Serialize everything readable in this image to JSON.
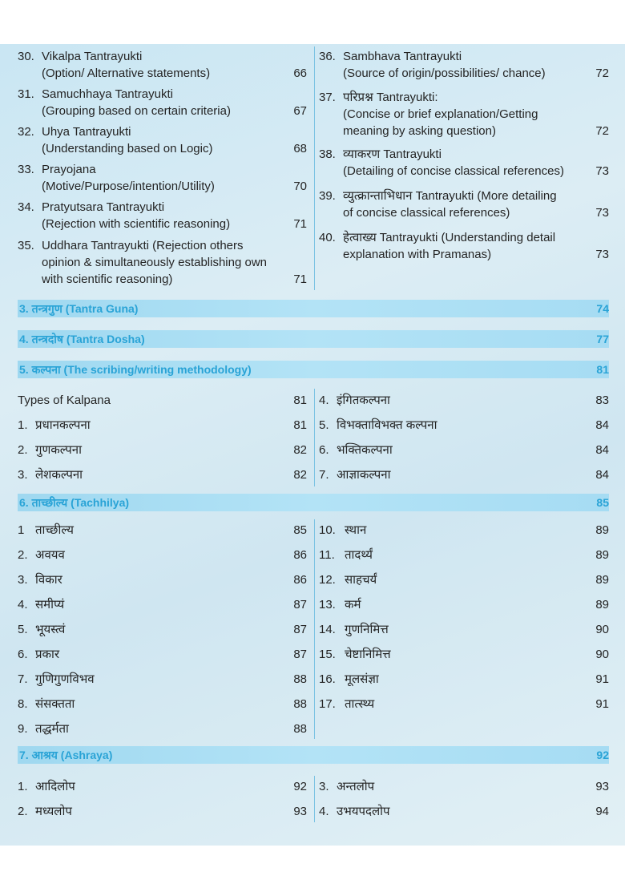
{
  "tantrayukti_left": [
    {
      "num": "30.",
      "lines": [
        "Vikalpa Tantrayukti",
        "(Option/ Alternative statements)"
      ],
      "page": "66"
    },
    {
      "num": "31.",
      "lines": [
        "Samuchhaya Tantrayukti",
        "(Grouping based on certain criteria)"
      ],
      "page": "67"
    },
    {
      "num": "32.",
      "lines": [
        "Uhya Tantrayukti",
        "(Understanding based on Logic)"
      ],
      "page": "68"
    },
    {
      "num": "33.",
      "lines": [
        "Prayojana",
        "(Motive/Purpose/intention/Utility)"
      ],
      "page": "70"
    },
    {
      "num": "34.",
      "lines": [
        "Pratyutsara Tantrayukti",
        "(Rejection with scientific reasoning)"
      ],
      "page": "71"
    },
    {
      "num": "35.",
      "lines": [
        "Uddhara Tantrayukti (Rejection others",
        "opinion & simultaneously establishing own",
        "with scientific reasoning)"
      ],
      "page": "71"
    }
  ],
  "tantrayukti_right": [
    {
      "num": "36.",
      "lines": [
        "Sambhava Tantrayukti",
        "(Source of origin/possibilities/ chance)"
      ],
      "page": "72"
    },
    {
      "num": "37.",
      "lines": [
        "परिप्रश्न Tantrayukti:",
        "(Concise or brief explanation/Getting",
        "meaning by asking question)"
      ],
      "page": "72"
    },
    {
      "num": "38.",
      "lines": [
        "व्याकरण Tantrayukti",
        "(Detailing of concise classical references)"
      ],
      "page": "73"
    },
    {
      "num": "39.",
      "lines": [
        "व्युत्क्रान्ताभिधान Tantrayukti (More detailing",
        "of concise classical references)"
      ],
      "page": "73"
    },
    {
      "num": "40.",
      "lines": [
        "हेत्वाख्य Tantrayukti (Understanding detail",
        "explanation with Pramanas)"
      ],
      "page": "73"
    }
  ],
  "sections": [
    {
      "title": "3. तन्त्रगुण (Tantra Guna)",
      "page": "74"
    },
    {
      "title": "4. तन्त्रदोष (Tantra Dosha)",
      "page": "77"
    },
    {
      "title": "5. कल्पना (The scribing/writing methodology)",
      "page": "81"
    },
    {
      "title": "6. ताच्छील्य (Tachhilya)",
      "page": "85"
    },
    {
      "title": "7. आश्रय (Ashraya)",
      "page": "92"
    }
  ],
  "kalpana_left": [
    {
      "num": "",
      "text": "Types of Kalpana",
      "page": "81"
    },
    {
      "num": "1.",
      "text": "प्रधानकल्पना",
      "page": "81"
    },
    {
      "num": "2.",
      "text": "गुणकल्पना",
      "page": "82"
    },
    {
      "num": "3.",
      "text": "लेशकल्पना",
      "page": "82"
    }
  ],
  "kalpana_right": [
    {
      "num": "4.",
      "text": "इंगितकल्पना",
      "page": "83"
    },
    {
      "num": "5.",
      "text": "विभक्ताविभक्त कल्पना",
      "page": "84"
    },
    {
      "num": "6.",
      "text": "भक्तिकल्पना",
      "page": "84"
    },
    {
      "num": "7.",
      "text": "आज्ञाकल्पना",
      "page": "84"
    }
  ],
  "tachhilya_left": [
    {
      "num": "1",
      "text": "ताच्छील्य",
      "page": "85"
    },
    {
      "num": "2.",
      "text": "अवयव",
      "page": "86"
    },
    {
      "num": "3.",
      "text": "विकार",
      "page": "86"
    },
    {
      "num": "4.",
      "text": "समीप्यं",
      "page": "87"
    },
    {
      "num": "5.",
      "text": "भूयस्त्वं",
      "page": "87"
    },
    {
      "num": "6.",
      "text": "प्रकार",
      "page": "87"
    },
    {
      "num": "7.",
      "text": "गुणिगुणविभव",
      "page": "88"
    },
    {
      "num": "8.",
      "text": "संसक्तता",
      "page": "88"
    },
    {
      "num": "9.",
      "text": "तद्धर्मता",
      "page": "88"
    }
  ],
  "tachhilya_right": [
    {
      "num": "10.",
      "text": "स्थान",
      "page": "89"
    },
    {
      "num": "11.",
      "text": "तादर्थ्यं",
      "page": "89"
    },
    {
      "num": "12.",
      "text": "साहचर्यं",
      "page": "89"
    },
    {
      "num": "13.",
      "text": "कर्म",
      "page": "89"
    },
    {
      "num": "14.",
      "text": "गुणनिमित्त",
      "page": "90"
    },
    {
      "num": "15.",
      "text": "चेष्टानिमित्त",
      "page": "90"
    },
    {
      "num": "16.",
      "text": "मूलसंज्ञा",
      "page": "91"
    },
    {
      "num": "17.",
      "text": "तात्स्थ्य",
      "page": "91"
    }
  ],
  "ashraya_left": [
    {
      "num": "1.",
      "text": "आदिलोप",
      "page": "92"
    },
    {
      "num": "2.",
      "text": "मध्यलोप",
      "page": "93"
    }
  ],
  "ashraya_right": [
    {
      "num": "3.",
      "text": "अन्तलोप",
      "page": "93"
    },
    {
      "num": "4.",
      "text": "उभयपदलोप",
      "page": "94"
    }
  ],
  "colors": {
    "section_bar": "#a8def5",
    "section_text": "#29a3d6",
    "divider": "#7cc3e3",
    "text": "#242424"
  }
}
